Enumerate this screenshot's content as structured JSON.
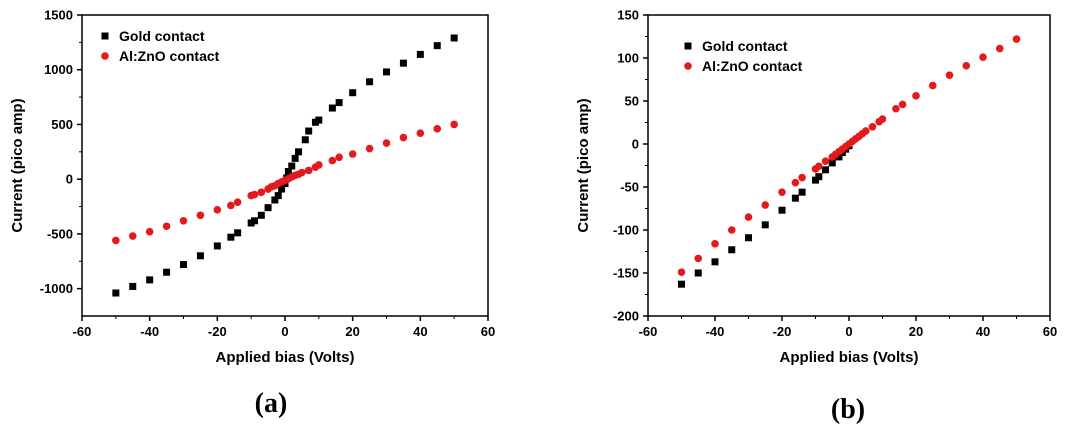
{
  "chart_data": [
    {
      "type": "scatter",
      "panel_label": "(a)",
      "xlabel": "Applied bias (Volts)",
      "ylabel": "Current (pico amp)",
      "xlim": [
        -60,
        60
      ],
      "ylim": [
        -1250,
        1500
      ],
      "xticks": [
        -60,
        -40,
        -20,
        0,
        20,
        40,
        60
      ],
      "yticks": [
        -1000,
        -500,
        0,
        500,
        1000,
        1500
      ],
      "legend_position": "top-left",
      "series": [
        {
          "name": "Gold contact",
          "color": "#000000",
          "marker": "square",
          "x": [
            -50,
            -45,
            -40,
            -35,
            -30,
            -25,
            -20,
            -16,
            -14,
            -10,
            -9,
            -7,
            -5,
            -3,
            -2,
            -1,
            0,
            0.5,
            1,
            2,
            3,
            4,
            6,
            7,
            9,
            10,
            14,
            16,
            20,
            25,
            30,
            35,
            40,
            45,
            50
          ],
          "y": [
            -1040,
            -980,
            -920,
            -850,
            -780,
            -700,
            -610,
            -530,
            -490,
            -400,
            -380,
            -330,
            -260,
            -190,
            -150,
            -90,
            -40,
            10,
            70,
            120,
            190,
            250,
            360,
            440,
            520,
            540,
            650,
            700,
            790,
            890,
            980,
            1060,
            1140,
            1220,
            1290
          ]
        },
        {
          "name": "Al:ZnO contact",
          "color": "#e31a1c",
          "marker": "circle",
          "x": [
            -50,
            -45,
            -40,
            -35,
            -30,
            -25,
            -20,
            -16,
            -14,
            -10,
            -9,
            -7,
            -5,
            -4,
            -3,
            -2,
            -1,
            0,
            1,
            2,
            3,
            4,
            5,
            7,
            9,
            10,
            14,
            16,
            20,
            25,
            30,
            35,
            40,
            45,
            50
          ],
          "y": [
            -560,
            -520,
            -480,
            -430,
            -380,
            -330,
            -280,
            -240,
            -210,
            -150,
            -140,
            -120,
            -90,
            -70,
            -60,
            -40,
            -25,
            -10,
            5,
            20,
            35,
            45,
            60,
            80,
            110,
            130,
            170,
            200,
            230,
            280,
            330,
            380,
            420,
            460,
            500
          ]
        }
      ]
    },
    {
      "type": "scatter",
      "panel_label": "(b)",
      "xlabel": "Applied bias (Volts)",
      "ylabel": "Current (pico amp)",
      "xlim": [
        -60,
        60
      ],
      "ylim": [
        -200,
        150
      ],
      "xticks": [
        -60,
        -40,
        -20,
        0,
        20,
        40,
        60
      ],
      "yticks": [
        -200,
        -150,
        -100,
        -50,
        0,
        50,
        100,
        150
      ],
      "legend_position": "top-left",
      "series": [
        {
          "name": "Gold contact",
          "color": "#000000",
          "marker": "square",
          "x": [
            -50,
            -45,
            -40,
            -35,
            -30,
            -25,
            -20,
            -16,
            -14,
            -10,
            -9,
            -7,
            -5,
            -3,
            -2,
            -1,
            0
          ],
          "y": [
            -163,
            -150,
            -137,
            -123,
            -109,
            -94,
            -77,
            -63,
            -56,
            -42,
            -38,
            -30,
            -22,
            -15,
            -10,
            -6,
            -2
          ]
        },
        {
          "name": "Al:ZnO contact",
          "color": "#e31a1c",
          "marker": "circle",
          "x": [
            -50,
            -45,
            -40,
            -35,
            -30,
            -25,
            -20,
            -16,
            -14,
            -10,
            -9,
            -7,
            -5,
            -4,
            -3,
            -2,
            -1,
            0,
            1,
            2,
            3,
            4,
            5,
            7,
            9,
            10,
            14,
            16,
            20,
            25,
            30,
            35,
            40,
            45,
            50
          ],
          "y": [
            -149,
            -133,
            -116,
            -100,
            -85,
            -71,
            -56,
            -45,
            -39,
            -29,
            -26,
            -20,
            -15,
            -12,
            -9,
            -6,
            -3,
            0,
            3,
            6,
            9,
            12,
            15,
            20,
            26,
            29,
            41,
            46,
            56,
            68,
            80,
            91,
            101,
            111,
            122
          ]
        }
      ]
    }
  ]
}
